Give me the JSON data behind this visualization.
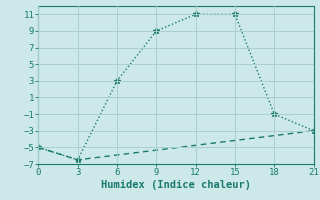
{
  "xlabel": "Humidex (Indice chaleur)",
  "line1_x": [
    0,
    3,
    6,
    9,
    12,
    15,
    18,
    21
  ],
  "line1_y": [
    -5,
    -6.5,
    3,
    9,
    11,
    11,
    -1,
    -3
  ],
  "line2_x": [
    0,
    3,
    21
  ],
  "line2_y": [
    -5,
    -6.5,
    -3
  ],
  "line_color": "#1a7a6e",
  "bg_color": "#cce8e8",
  "grid_color": "#aacfcf",
  "xlim": [
    0,
    21
  ],
  "ylim": [
    -7,
    12
  ],
  "xticks": [
    0,
    3,
    6,
    9,
    12,
    15,
    18,
    21
  ],
  "yticks": [
    -7,
    -5,
    -3,
    -1,
    1,
    3,
    5,
    7,
    9,
    11
  ],
  "marker": "*",
  "markersize": 4,
  "linewidth": 1.0,
  "tick_fontsize": 6.5,
  "xlabel_fontsize": 7.5
}
